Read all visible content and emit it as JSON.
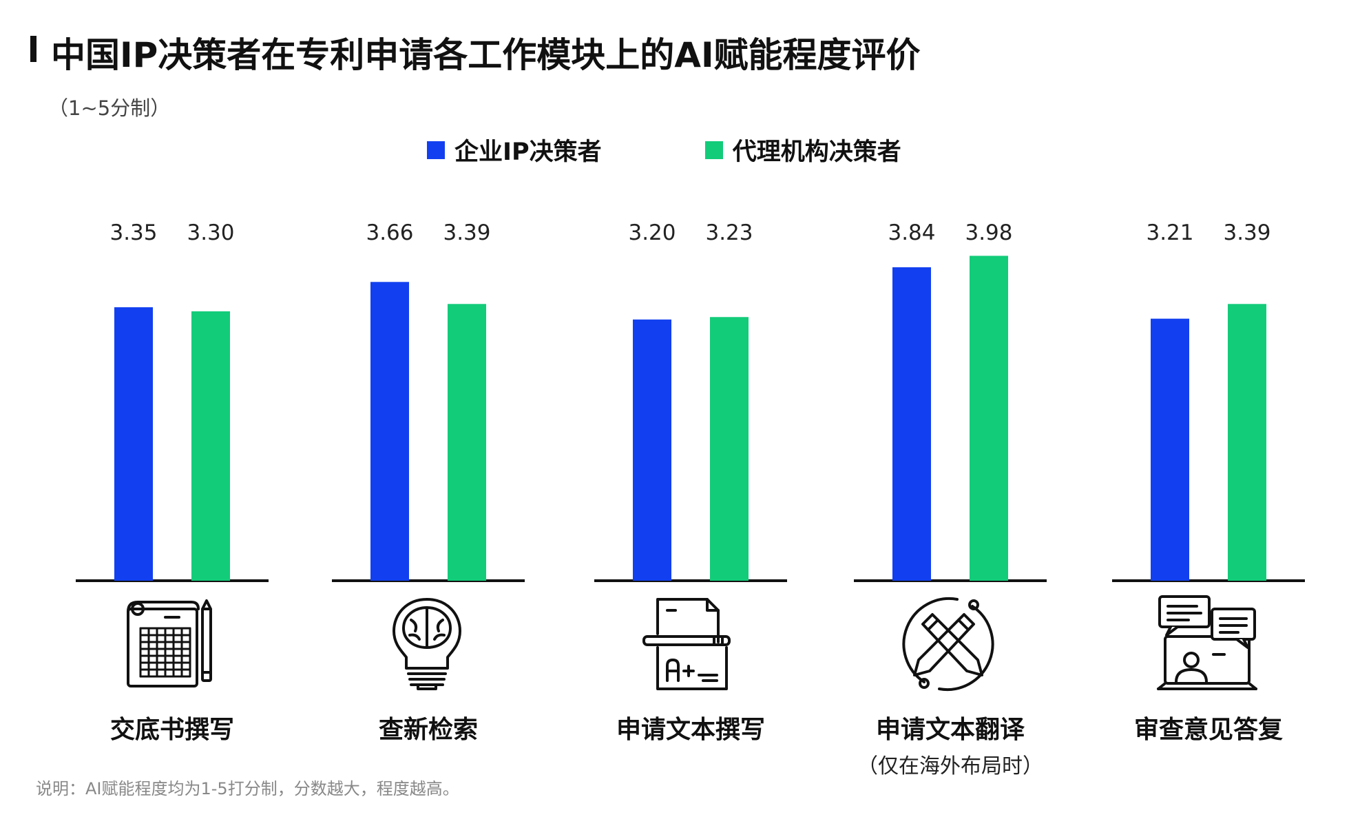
{
  "title": "中国IP决策者在专利申请各工作模块上的AI赋能程度评价",
  "subtitle": "（1~5分制）",
  "note": "说明：AI赋能程度均为1-5打分制，分数越大，程度越高。",
  "colors": {
    "enterprise": "#1240f0",
    "agency": "#12cc7a",
    "text": "#111111"
  },
  "icons": [
    "disclosure-document-icon",
    "lightbulb-brain-icon",
    "document-pen-grade-icon",
    "crossed-pencils-cycle-icon",
    "chat-presentation-icon"
  ],
  "chart_data": {
    "type": "bar",
    "title": "中国IP决策者在专利申请各工作模块上的AI赋能程度评价",
    "subtitle": "（1~5分制）",
    "categories": [
      "交底书撰写",
      "查新检索",
      "申请文本撰写",
      "申请文本翻译",
      "审查意见答复"
    ],
    "category_notes": [
      "",
      "",
      "",
      "（仅在海外布局时）",
      ""
    ],
    "series": [
      {
        "name": "企业IP决策者",
        "values": [
          3.35,
          3.66,
          3.2,
          3.84,
          3.21
        ],
        "labels": [
          "3.35",
          "3.66",
          "3.20",
          "3.84",
          "3.21"
        ]
      },
      {
        "name": "代理机构决策者",
        "values": [
          3.3,
          3.39,
          3.23,
          3.98,
          3.39
        ],
        "labels": [
          "3.30",
          "3.39",
          "3.23",
          "3.98",
          "3.39"
        ]
      }
    ],
    "ylim": [
      0,
      5
    ],
    "grid": false,
    "legend_position": "top-center"
  }
}
